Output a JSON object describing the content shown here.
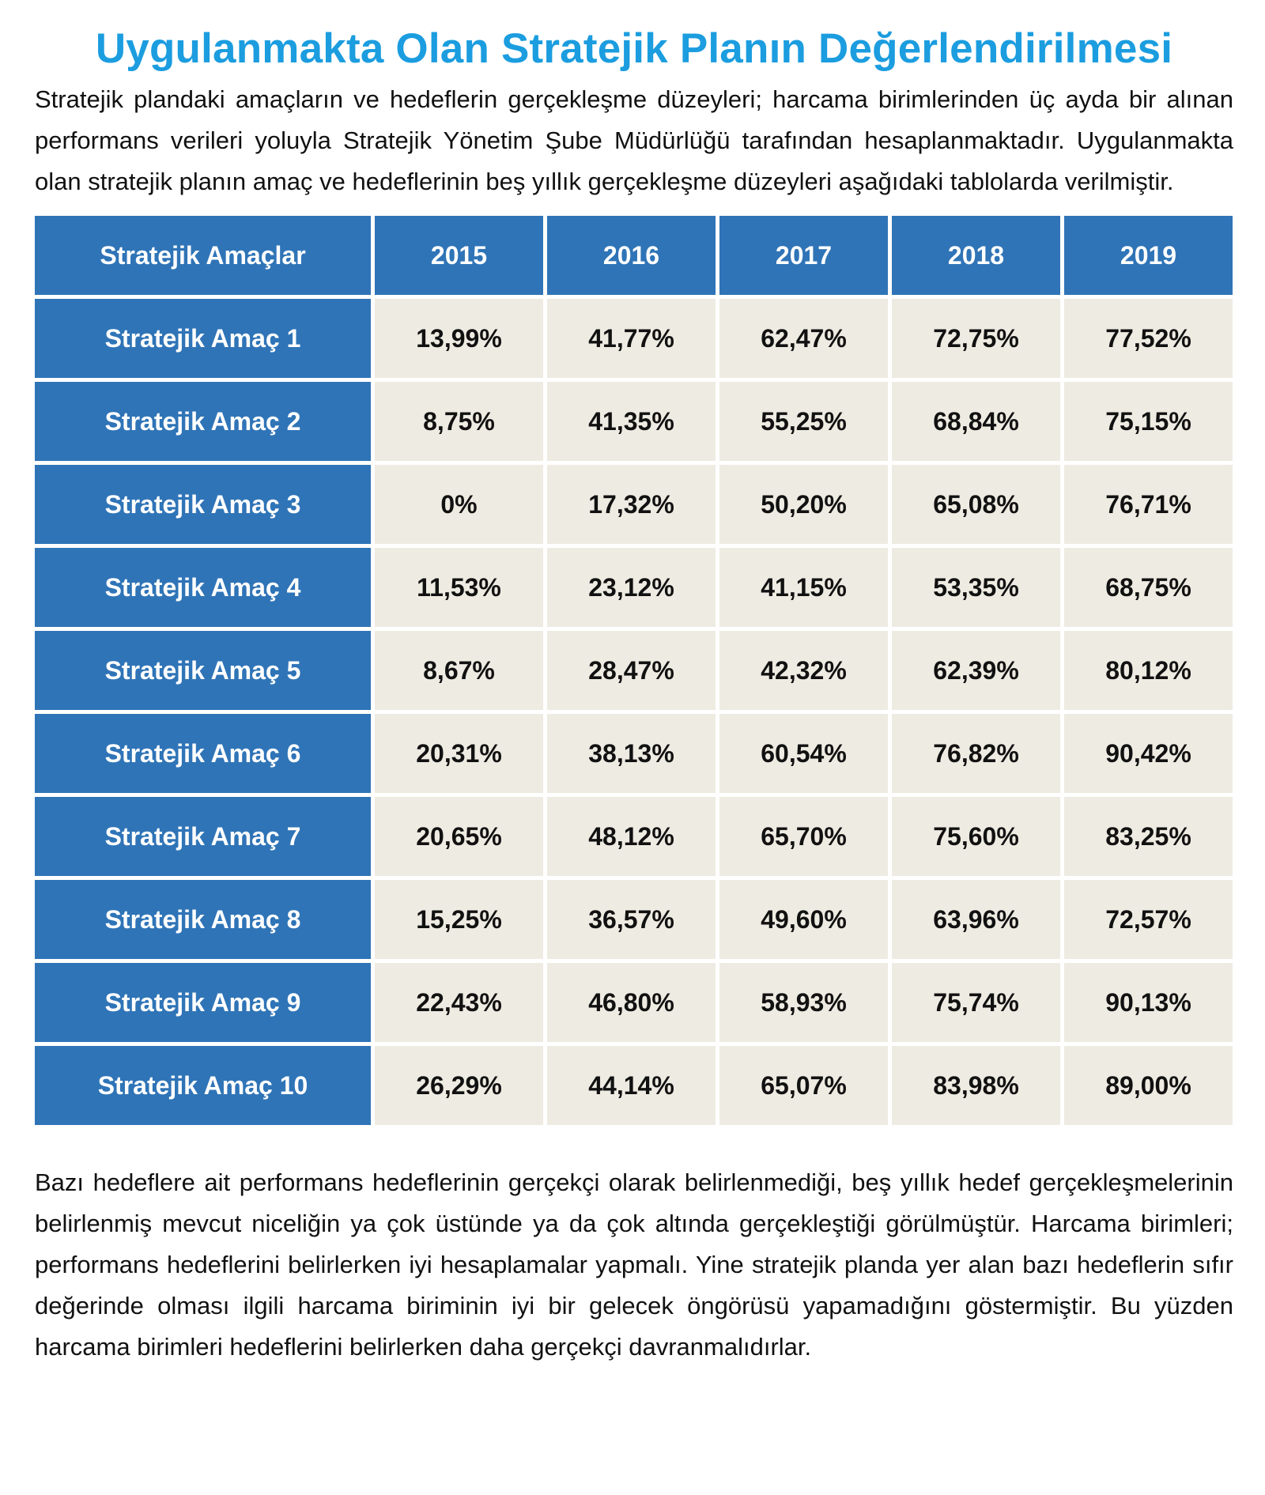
{
  "title": "Uygulanmakta Olan Stratejik Planın Değerlendirilmesi",
  "intro": "Stratejik plandaki amaçların ve hedeflerin gerçekleşme düzeyleri; harcama birimlerinden üç ayda bir alınan performans verileri yoluyla Stratejik Yönetim Şube Müdürlüğü tarafından hesaplanmaktadır. Uygulanmakta olan stratejik planın amaç ve hedeflerinin beş yıllık gerçekleşme düzeyleri aşağıdaki tablolarda verilmiştir.",
  "table": {
    "headers": [
      "Stratejik Amaçlar",
      "2015",
      "2016",
      "2017",
      "2018",
      "2019"
    ],
    "rows": [
      {
        "label": "Stratejik Amaç 1",
        "values": [
          "13,99%",
          "41,77%",
          "62,47%",
          "72,75%",
          "77,52%"
        ]
      },
      {
        "label": "Stratejik Amaç 2",
        "values": [
          "8,75%",
          "41,35%",
          "55,25%",
          "68,84%",
          "75,15%"
        ]
      },
      {
        "label": "Stratejik Amaç 3",
        "values": [
          "0%",
          "17,32%",
          "50,20%",
          "65,08%",
          "76,71%"
        ]
      },
      {
        "label": "Stratejik Amaç 4",
        "values": [
          "11,53%",
          "23,12%",
          "41,15%",
          "53,35%",
          "68,75%"
        ]
      },
      {
        "label": "Stratejik Amaç 5",
        "values": [
          "8,67%",
          "28,47%",
          "42,32%",
          "62,39%",
          "80,12%"
        ]
      },
      {
        "label": "Stratejik Amaç 6",
        "values": [
          "20,31%",
          "38,13%",
          "60,54%",
          "76,82%",
          "90,42%"
        ]
      },
      {
        "label": "Stratejik Amaç 7",
        "values": [
          "20,65%",
          "48,12%",
          "65,70%",
          "75,60%",
          "83,25%"
        ]
      },
      {
        "label": "Stratejik Amaç 8",
        "values": [
          "15,25%",
          "36,57%",
          "49,60%",
          "63,96%",
          "72,57%"
        ]
      },
      {
        "label": "Stratejik Amaç 9",
        "values": [
          "22,43%",
          "46,80%",
          "58,93%",
          "75,74%",
          "90,13%"
        ]
      },
      {
        "label": "Stratejik Amaç 10",
        "values": [
          "26,29%",
          "44,14%",
          "65,07%",
          "83,98%",
          "89,00%"
        ]
      }
    ]
  },
  "conclusion": "Bazı hedeflere ait performans hedeflerinin gerçekçi olarak belirlenmediği, beş yıllık hedef gerçekleşmelerinin belirlenmiş mevcut niceliğin ya çok üstünde ya da çok altında gerçekleştiği görülmüştür. Harcama birimleri; performans hedeflerini belirlerken iyi hesaplamalar yapmalı. Yine stratejik planda yer alan bazı hedeflerin sıfır değerinde olması ilgili harcama biriminin iyi bir gelecek öngörüsü yapamadığını göstermiştir. Bu yüzden harcama birimleri hedeflerini belirlerken daha gerçekçi davranmalıdırlar.",
  "colors": {
    "title": "#1b9ddf",
    "header_bg": "#2f74b7",
    "cell_bg": "#eeebe2"
  }
}
